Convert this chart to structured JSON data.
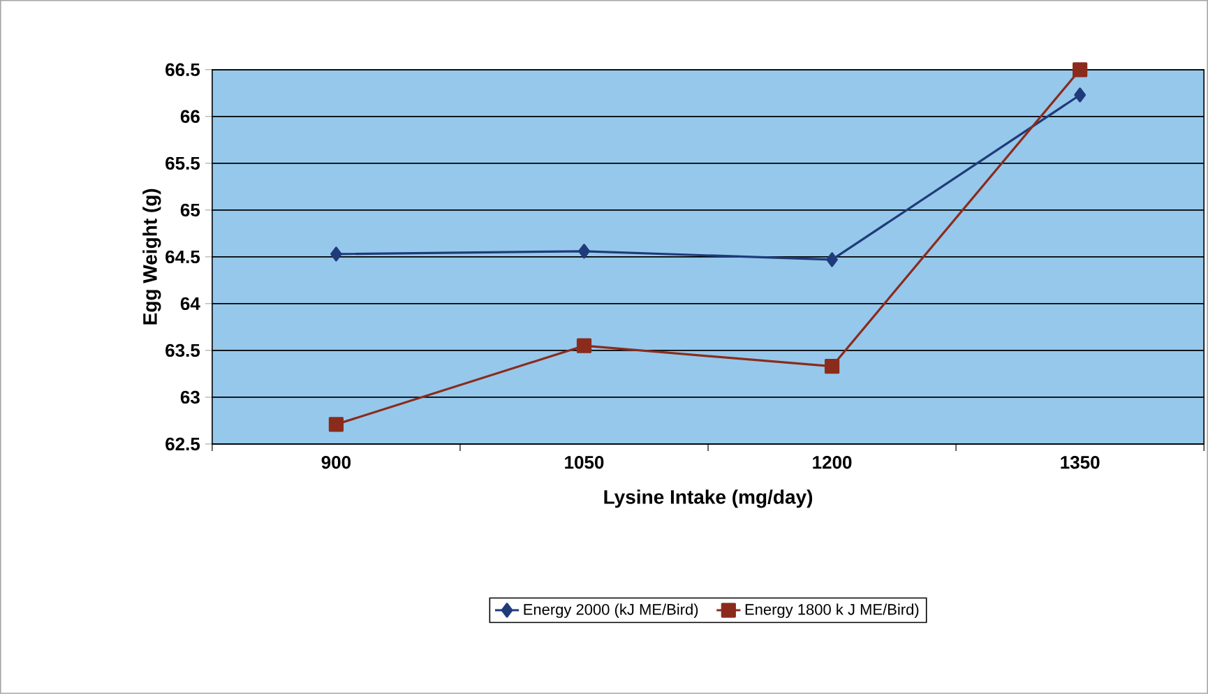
{
  "chart_data": {
    "type": "line",
    "xlabel": "Lysine Intake (mg/day)",
    "ylabel": "Egg Weight (g)",
    "categories": [
      "900",
      "1050",
      "1200",
      "1350"
    ],
    "series": [
      {
        "name": "Energy 2000 (kJ ME/Bird)",
        "color": "#1f3b7a",
        "marker": "diamond",
        "values": [
          64.53,
          64.56,
          64.47,
          66.23
        ]
      },
      {
        "name": "Energy 1800 k J ME/Bird)",
        "color": "#8b2b1c",
        "marker": "square",
        "values": [
          62.71,
          63.55,
          63.33,
          66.5
        ]
      }
    ],
    "ylim": [
      62.5,
      66.5
    ],
    "yticks": [
      62.5,
      63,
      63.5,
      64,
      64.5,
      65,
      65.5,
      66,
      66.5
    ],
    "grid": "y",
    "legend": "bottom",
    "line_style": "solid"
  }
}
